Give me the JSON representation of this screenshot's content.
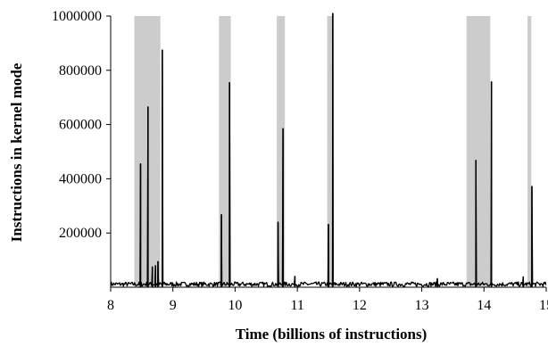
{
  "chart_data": {
    "type": "line",
    "title": "",
    "xlabel": "Time (billions of instructions)",
    "ylabel": "Instructions in kernel mode",
    "xlim": [
      8,
      15
    ],
    "ylim": [
      0,
      1000000
    ],
    "x_ticks": [
      8,
      9,
      10,
      11,
      12,
      13,
      14,
      15
    ],
    "y_ticks": [
      200000,
      400000,
      600000,
      800000,
      1000000
    ],
    "grid": false,
    "legend": "none",
    "line_color": "#000000",
    "shaded_color": "#cccccc",
    "shaded_x_ranges": [
      [
        8.38,
        8.8
      ],
      [
        9.74,
        9.93
      ],
      [
        10.67,
        10.8
      ],
      [
        11.48,
        11.57
      ],
      [
        13.72,
        14.1
      ],
      [
        14.7,
        14.76
      ]
    ],
    "baseline_value": 15000,
    "spikes": [
      {
        "x": 8.48,
        "y": 455000
      },
      {
        "x": 8.6,
        "y": 665000
      },
      {
        "x": 8.67,
        "y": 75000
      },
      {
        "x": 8.72,
        "y": 80000
      },
      {
        "x": 8.76,
        "y": 95000
      },
      {
        "x": 8.83,
        "y": 875000
      },
      {
        "x": 9.78,
        "y": 268000
      },
      {
        "x": 9.91,
        "y": 755000
      },
      {
        "x": 10.69,
        "y": 240000
      },
      {
        "x": 10.77,
        "y": 585000
      },
      {
        "x": 10.96,
        "y": 40000
      },
      {
        "x": 11.5,
        "y": 232000
      },
      {
        "x": 11.57,
        "y": 1010000
      },
      {
        "x": 13.25,
        "y": 32000
      },
      {
        "x": 13.87,
        "y": 468000
      },
      {
        "x": 14.12,
        "y": 758000
      },
      {
        "x": 14.63,
        "y": 38000
      },
      {
        "x": 14.77,
        "y": 372000
      }
    ]
  }
}
